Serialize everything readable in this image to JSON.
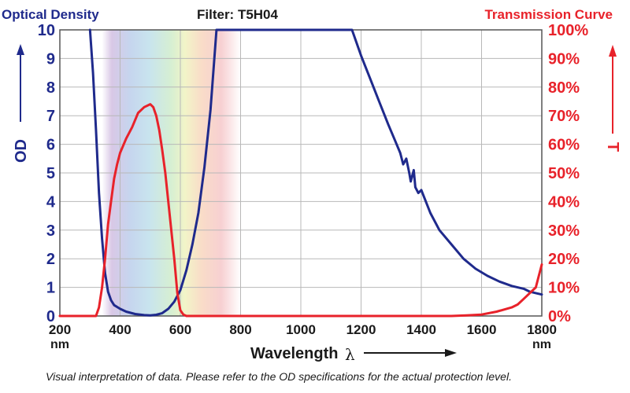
{
  "chart_data": {
    "type": "line",
    "title": "Filter: T5H04",
    "left_header": "Optical Density",
    "right_header": "Transmission Curve",
    "xlabel": "Wavelength",
    "xlabel_symbol": "λ",
    "x_unit": "nm",
    "ylabel_left": "OD",
    "ylabel_right": "T",
    "xlim": [
      200,
      1800
    ],
    "ylim_left": [
      0,
      10
    ],
    "ylim_right": [
      0,
      100
    ],
    "x_ticks": [
      "200",
      "400",
      "600",
      "800",
      "1000",
      "1200",
      "1400",
      "1600",
      "1800"
    ],
    "y_left_ticks": [
      "0",
      "1",
      "2",
      "3",
      "4",
      "5",
      "6",
      "7",
      "8",
      "9",
      "10"
    ],
    "y_right_ticks": [
      "0%",
      "10%",
      "20%",
      "30%",
      "40%",
      "50%",
      "60%",
      "70%",
      "80%",
      "90%",
      "100%"
    ],
    "grid": true,
    "visible_band": [
      340,
      800
    ],
    "series": [
      {
        "axis": "left",
        "color": "#1f2a8c",
        "x": [
          300,
          310,
          320,
          330,
          340,
          350,
          360,
          370,
          380,
          400,
          420,
          450,
          480,
          500,
          520,
          540,
          560,
          580,
          600,
          620,
          640,
          660,
          680,
          700,
          720,
          1170,
          1200,
          1230,
          1260,
          1290,
          1310,
          1330,
          1340,
          1350,
          1360,
          1365,
          1370,
          1375,
          1380,
          1390,
          1400,
          1430,
          1460,
          1500,
          1540,
          1580,
          1620,
          1660,
          1700,
          1740,
          1760,
          1780,
          1800
        ],
        "y": [
          10,
          8.5,
          6.5,
          4.3,
          2.7,
          1.5,
          0.85,
          0.55,
          0.38,
          0.25,
          0.15,
          0.07,
          0.03,
          0.02,
          0.04,
          0.1,
          0.25,
          0.5,
          0.9,
          1.6,
          2.5,
          3.6,
          5.2,
          7.2,
          10,
          10,
          9.1,
          8.3,
          7.5,
          6.7,
          6.2,
          5.7,
          5.3,
          5.5,
          5.0,
          4.7,
          4.9,
          5.1,
          4.5,
          4.3,
          4.4,
          3.6,
          3.0,
          2.5,
          2.0,
          1.65,
          1.4,
          1.2,
          1.05,
          0.95,
          0.85,
          0.8,
          0.75
        ]
      },
      {
        "axis": "right",
        "color": "#e8222a",
        "x": [
          200,
          320,
          330,
          340,
          350,
          360,
          370,
          380,
          390,
          400,
          420,
          440,
          460,
          480,
          500,
          510,
          520,
          530,
          540,
          550,
          560,
          570,
          580,
          590,
          600,
          610,
          620,
          1500,
          1550,
          1600,
          1650,
          1700,
          1720,
          1740,
          1760,
          1780,
          1790,
          1800
        ],
        "y": [
          0,
          0,
          3,
          10,
          20,
          32,
          40,
          48,
          53,
          57,
          62,
          66,
          71,
          73,
          74,
          73,
          70,
          65,
          58,
          50,
          40,
          30,
          20,
          8,
          2,
          0.5,
          0,
          0,
          0.2,
          0.5,
          1.5,
          3,
          4,
          6,
          8,
          10,
          14,
          18
        ]
      }
    ],
    "footnote": "Visual interpretation of data. Please refer to the OD specifications for the actual protection level."
  }
}
